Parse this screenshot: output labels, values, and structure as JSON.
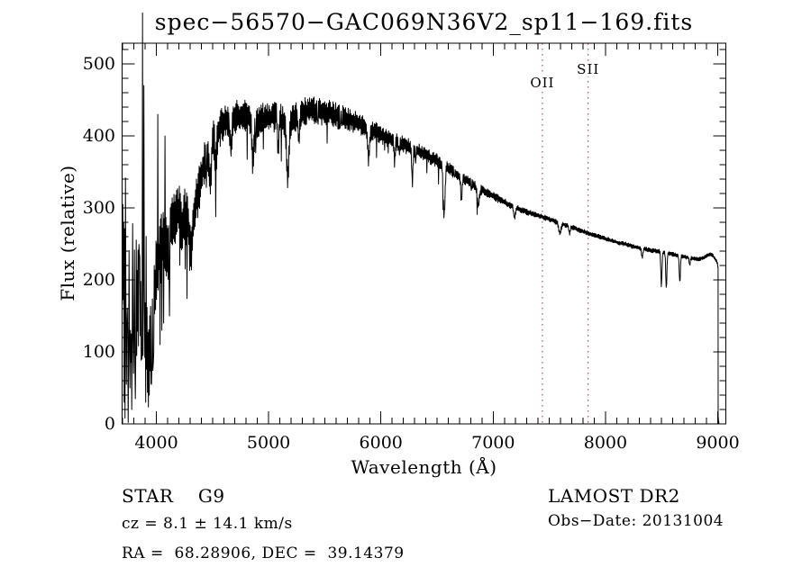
{
  "title": "spec−56570−GAC069N36V2_sp11−169.fits",
  "colors": {
    "foreground": "#000000",
    "background": "#ffffff",
    "marker_line": "#993333"
  },
  "x_axis": {
    "label": "Wavelength (Å)",
    "min": 3695,
    "max": 9072,
    "major_ticks": [
      4000,
      5000,
      6000,
      7000,
      8000,
      9000
    ],
    "minor_tick_interval": 100
  },
  "y_axis": {
    "label": "Flux (relative)",
    "min": 0,
    "max": 529,
    "major_ticks": [
      0,
      100,
      200,
      300,
      400,
      500
    ],
    "minor_tick_interval": 20
  },
  "line_markers": [
    {
      "label": "OII",
      "wavelength": 7438,
      "label_y": 84
    },
    {
      "label": "SII",
      "wavelength": 7846,
      "label_y": 69
    }
  ],
  "footer": {
    "left": {
      "line1": "STAR    G9",
      "line2": "cz = 8.1 ± 14.1 km/s",
      "line3": "RA =  68.28906, DEC =  39.14379"
    },
    "right": {
      "line1": "LAMOST DR2",
      "line2": "Obs−Date: 20131004"
    }
  },
  "chart_data": {
    "type": "line",
    "title": "spec−56570−GAC069N36V2_sp11−169.fits",
    "xlabel": "Wavelength (Å)",
    "ylabel": "Flux (relative)",
    "xlim": [
      3695,
      9072
    ],
    "ylim": [
      0,
      529
    ],
    "grid": false,
    "wavelength_start": 3697,
    "wavelength_end": 9002,
    "step": 4,
    "noise_seed": 42,
    "continuum_anchors": [
      [
        3695,
        240
      ],
      [
        3710,
        215
      ],
      [
        3725,
        195
      ],
      [
        3740,
        205
      ],
      [
        3760,
        185
      ],
      [
        3780,
        200
      ],
      [
        3800,
        185
      ],
      [
        3820,
        170
      ],
      [
        3845,
        175
      ],
      [
        3865,
        155
      ],
      [
        3885,
        140
      ],
      [
        3905,
        125
      ],
      [
        3925,
        130
      ],
      [
        3945,
        150
      ],
      [
        3965,
        175
      ],
      [
        3985,
        195
      ],
      [
        4005,
        215
      ],
      [
        4030,
        240
      ],
      [
        4060,
        255
      ],
      [
        4090,
        265
      ],
      [
        4120,
        275
      ],
      [
        4160,
        288
      ],
      [
        4200,
        296
      ],
      [
        4240,
        292
      ],
      [
        4280,
        285
      ],
      [
        4310,
        280
      ],
      [
        4340,
        300
      ],
      [
        4380,
        330
      ],
      [
        4420,
        358
      ],
      [
        4460,
        378
      ],
      [
        4500,
        395
      ],
      [
        4550,
        408
      ],
      [
        4600,
        418
      ],
      [
        4650,
        424
      ],
      [
        4700,
        427
      ],
      [
        4750,
        428
      ],
      [
        4800,
        428
      ],
      [
        4861,
        417
      ],
      [
        4910,
        421
      ],
      [
        4960,
        424
      ],
      [
        5010,
        426
      ],
      [
        5060,
        427
      ],
      [
        5110,
        423
      ],
      [
        5170,
        413
      ],
      [
        5230,
        425
      ],
      [
        5290,
        432
      ],
      [
        5350,
        435
      ],
      [
        5410,
        436
      ],
      [
        5470,
        434
      ],
      [
        5530,
        432
      ],
      [
        5590,
        429
      ],
      [
        5650,
        426
      ],
      [
        5710,
        423
      ],
      [
        5770,
        419
      ],
      [
        5830,
        415
      ],
      [
        5890,
        407
      ],
      [
        5950,
        406
      ],
      [
        6010,
        401
      ],
      [
        6070,
        397
      ],
      [
        6130,
        393
      ],
      [
        6190,
        389
      ],
      [
        6250,
        385
      ],
      [
        6310,
        381
      ],
      [
        6370,
        376
      ],
      [
        6430,
        371
      ],
      [
        6490,
        366
      ],
      [
        6550,
        360
      ],
      [
        6610,
        354
      ],
      [
        6670,
        348
      ],
      [
        6730,
        342
      ],
      [
        6790,
        336
      ],
      [
        6850,
        330
      ],
      [
        6910,
        324
      ],
      [
        6970,
        319
      ],
      [
        7030,
        314
      ],
      [
        7090,
        309
      ],
      [
        7150,
        304
      ],
      [
        7210,
        300
      ],
      [
        7270,
        296
      ],
      [
        7330,
        293
      ],
      [
        7390,
        290
      ],
      [
        7450,
        287
      ],
      [
        7510,
        284
      ],
      [
        7570,
        280
      ],
      [
        7630,
        277
      ],
      [
        7690,
        274
      ],
      [
        7750,
        270
      ],
      [
        7810,
        267
      ],
      [
        7870,
        264
      ],
      [
        7930,
        261
      ],
      [
        7990,
        258
      ],
      [
        8050,
        255
      ],
      [
        8110,
        252
      ],
      [
        8170,
        250
      ],
      [
        8230,
        247
      ],
      [
        8290,
        245
      ],
      [
        8350,
        243
      ],
      [
        8410,
        241
      ],
      [
        8470,
        240
      ],
      [
        8530,
        238
      ],
      [
        8590,
        236
      ],
      [
        8650,
        234
      ],
      [
        8710,
        232
      ],
      [
        8770,
        230
      ],
      [
        8830,
        229
      ],
      [
        8870,
        231
      ],
      [
        8910,
        234
      ],
      [
        8940,
        236
      ],
      [
        8960,
        233
      ],
      [
        8980,
        228
      ],
      [
        8995,
        224
      ],
      [
        9002,
        218
      ]
    ],
    "noise_envelope": [
      [
        3695,
        95
      ],
      [
        3750,
        100
      ],
      [
        3800,
        95
      ],
      [
        3850,
        85
      ],
      [
        3900,
        75
      ],
      [
        3950,
        70
      ],
      [
        4000,
        55
      ],
      [
        4100,
        45
      ],
      [
        4200,
        40
      ],
      [
        4300,
        38
      ],
      [
        4400,
        34
      ],
      [
        4500,
        28
      ],
      [
        4700,
        24
      ],
      [
        5000,
        22
      ],
      [
        5300,
        20
      ],
      [
        5600,
        18
      ],
      [
        5900,
        14
      ],
      [
        6100,
        12
      ],
      [
        6300,
        11
      ],
      [
        6500,
        10
      ],
      [
        6700,
        8
      ],
      [
        6900,
        7
      ],
      [
        7100,
        5
      ],
      [
        7300,
        4
      ],
      [
        7600,
        3.5
      ],
      [
        8000,
        3
      ],
      [
        8500,
        3
      ],
      [
        9000,
        2.5
      ]
    ],
    "absorption_features": [
      [
        3934,
        70,
        12
      ],
      [
        3969,
        55,
        10
      ],
      [
        4102,
        35,
        10
      ],
      [
        4227,
        30,
        8
      ],
      [
        4305,
        45,
        12
      ],
      [
        4481,
        55,
        8
      ],
      [
        4530,
        40,
        8
      ],
      [
        4668,
        35,
        6
      ],
      [
        4861,
        55,
        8
      ],
      [
        5085,
        40,
        6
      ],
      [
        5170,
        75,
        10
      ],
      [
        5270,
        35,
        7
      ],
      [
        5890,
        40,
        8
      ],
      [
        6122,
        30,
        6
      ],
      [
        6280,
        45,
        6
      ],
      [
        6563,
        70,
        8
      ],
      [
        6717,
        35,
        6
      ],
      [
        6867,
        25,
        10
      ],
      [
        7190,
        15,
        8
      ],
      [
        7594,
        14,
        10
      ],
      [
        7680,
        10,
        6
      ],
      [
        8327,
        12,
        6
      ],
      [
        8498,
        48,
        5
      ],
      [
        8542,
        50,
        5
      ],
      [
        8662,
        38,
        5
      ],
      [
        8750,
        10,
        5
      ]
    ],
    "emission_spikes": [
      [
        3876,
        571
      ],
      [
        3890,
        470
      ],
      [
        4012,
        430
      ],
      [
        4076,
        400
      ]
    ],
    "down_spikes": [
      [
        3712,
        30
      ],
      [
        3722,
        8
      ],
      [
        3734,
        55
      ],
      [
        3748,
        2
      ],
      [
        3766,
        50
      ],
      [
        3782,
        20
      ],
      [
        3796,
        70
      ],
      [
        3812,
        35
      ],
      [
        3824,
        95
      ],
      [
        3906,
        30
      ],
      [
        3938,
        40
      ],
      [
        3956,
        55
      ],
      [
        3972,
        85
      ],
      [
        4034,
        110
      ],
      [
        4050,
        130
      ],
      [
        4066,
        140
      ],
      [
        4118,
        150
      ]
    ],
    "tail_points": [
      [
        9003,
        218
      ],
      [
        9003.5,
        0
      ],
      [
        9005,
        9
      ],
      [
        9007,
        0
      ],
      [
        9009,
        4
      ],
      [
        9010,
        0
      ]
    ]
  }
}
